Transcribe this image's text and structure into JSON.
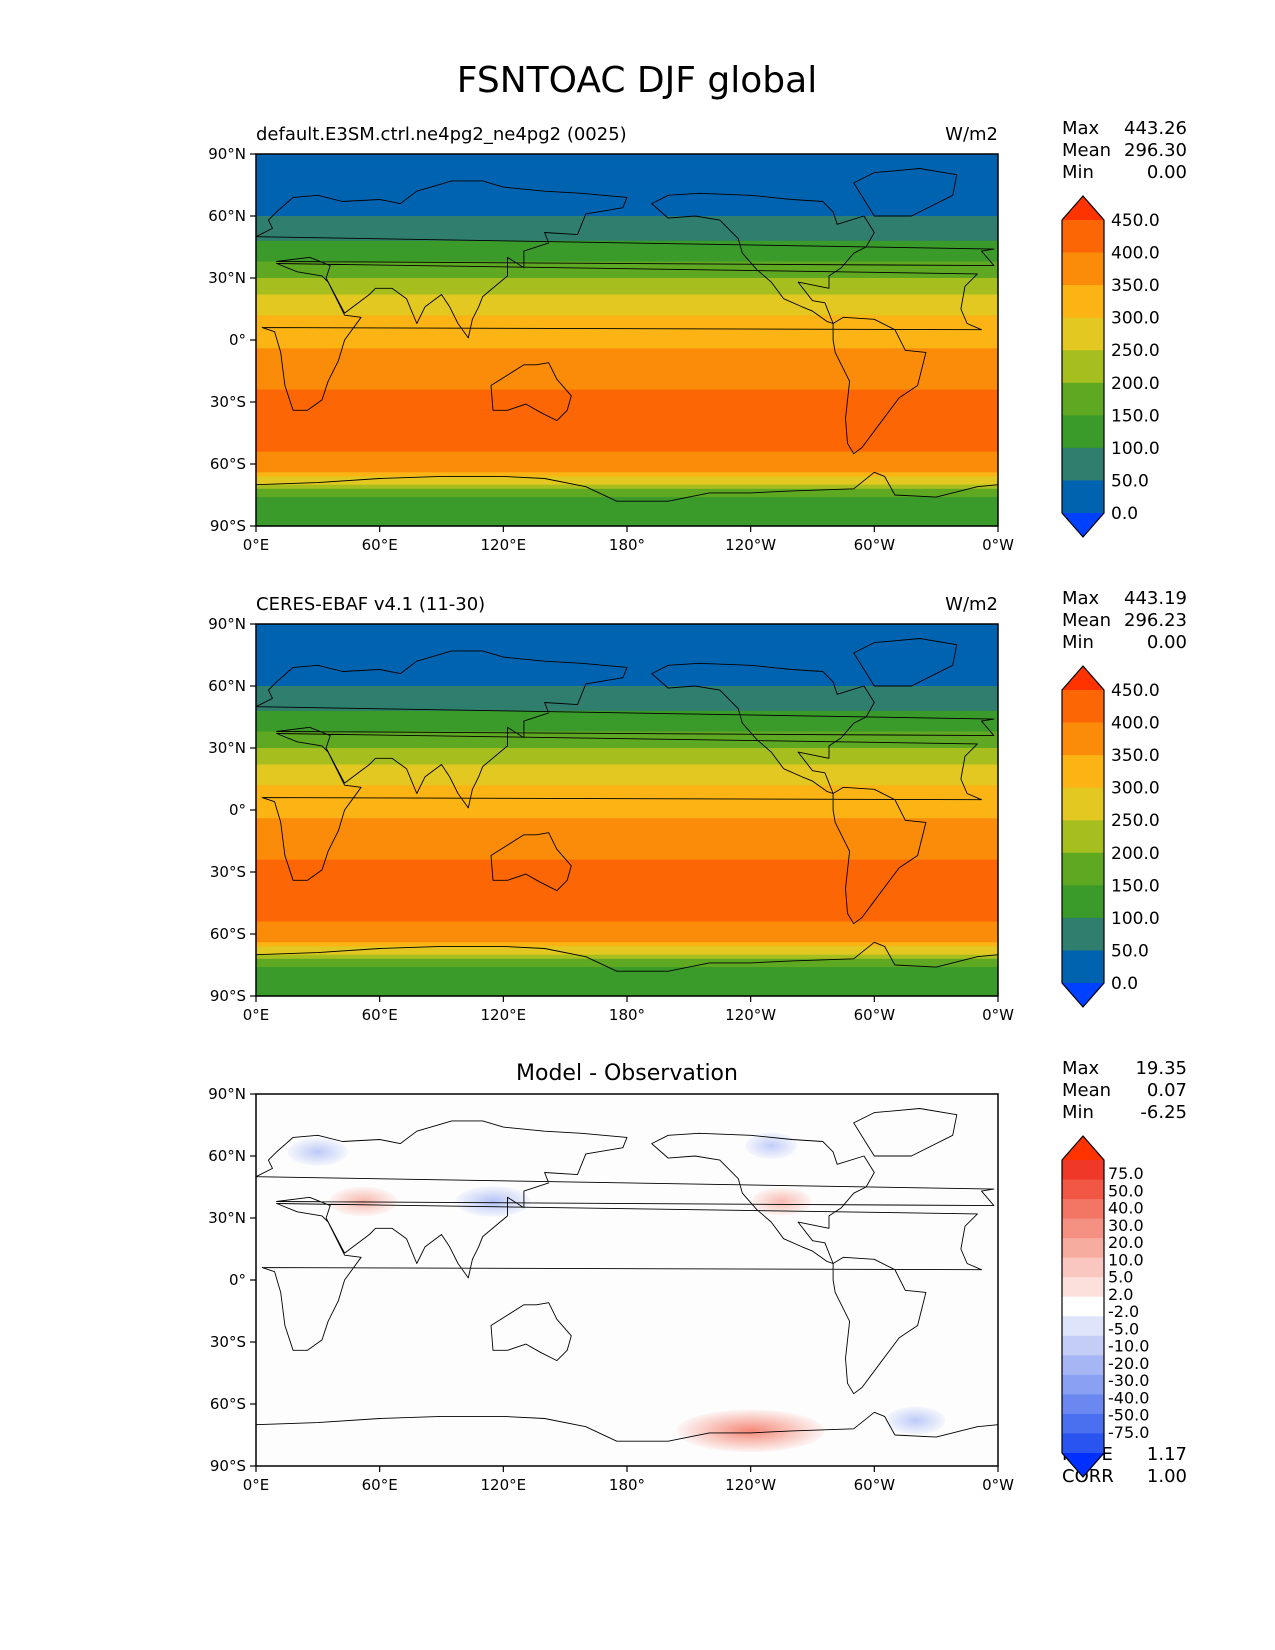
{
  "figure": {
    "title": "FSNTOAC DJF global"
  },
  "axes": {
    "x_ticks": [
      "0°E",
      "60°E",
      "120°E",
      "180°",
      "120°W",
      "60°W",
      "0°W"
    ],
    "y_ticks": [
      "90°N",
      "60°N",
      "30°N",
      "0°",
      "30°S",
      "60°S",
      "90°S"
    ],
    "xlim": [
      0,
      360
    ],
    "ylim": [
      -90,
      90
    ]
  },
  "colormaps": {
    "sequential": [
      "#0040ff",
      "#0063b0",
      "#2f7e6e",
      "#3a9a2a",
      "#5fa822",
      "#a7bf1e",
      "#e2c820",
      "#fbb414",
      "#fb8c0a",
      "#fc6605",
      "#ff3300"
    ],
    "diverging": [
      "#0030ff",
      "#2a54f0",
      "#4a70f0",
      "#6a88f0",
      "#8aa0f2",
      "#a6b6f4",
      "#c4cdf6",
      "#dee4fa",
      "#ffffff",
      "#fbe0dc",
      "#f9c7bf",
      "#f7aca0",
      "#f59182",
      "#f37564",
      "#f25746",
      "#f03828",
      "#ff3300"
    ]
  },
  "chart_data": [
    {
      "type": "heatmap",
      "panel_id": "model",
      "title_left": "default.E3SM.ctrl.ne4pg2_ne4pg2 (0025)",
      "title_right": "W/m2",
      "stats": {
        "max_label": "Max",
        "max": "443.26",
        "mean_label": "Mean",
        "mean": "296.30",
        "min_label": "Min",
        "min": "0.00"
      },
      "colorbar_ticks": [
        "450.0",
        "400.0",
        "350.0",
        "300.0",
        "250.0",
        "200.0",
        "150.0",
        "100.0",
        "50.0",
        "0.0"
      ],
      "levels": [
        0,
        50,
        100,
        150,
        200,
        250,
        300,
        350,
        400,
        450
      ],
      "lat_profile": {
        "lat": [
          90,
          84,
          75,
          60,
          50,
          40,
          30,
          20,
          10,
          0,
          -10,
          -20,
          -30,
          -40,
          -50,
          -60,
          -65,
          -70,
          -75,
          -80,
          -90
        ],
        "value": [
          0,
          30,
          40,
          50,
          90,
          140,
          200,
          260,
          310,
          340,
          370,
          395,
          410,
          420,
          415,
          380,
          330,
          230,
          150,
          140,
          140
        ]
      }
    },
    {
      "type": "heatmap",
      "panel_id": "obs",
      "title_left": "CERES-EBAF v4.1 (11-30)",
      "title_right": "W/m2",
      "stats": {
        "max_label": "Max",
        "max": "443.19",
        "mean_label": "Mean",
        "mean": "296.23",
        "min_label": "Min",
        "min": "0.00"
      },
      "colorbar_ticks": [
        "450.0",
        "400.0",
        "350.0",
        "300.0",
        "250.0",
        "200.0",
        "150.0",
        "100.0",
        "50.0",
        "0.0"
      ],
      "levels": [
        0,
        50,
        100,
        150,
        200,
        250,
        300,
        350,
        400,
        450
      ],
      "lat_profile": {
        "lat": [
          90,
          84,
          75,
          60,
          50,
          40,
          30,
          20,
          10,
          0,
          -10,
          -20,
          -30,
          -40,
          -50,
          -60,
          -65,
          -70,
          -75,
          -80,
          -90
        ],
        "value": [
          0,
          30,
          40,
          50,
          90,
          140,
          200,
          260,
          310,
          340,
          370,
          395,
          410,
          420,
          415,
          380,
          330,
          230,
          150,
          140,
          140
        ]
      }
    },
    {
      "type": "heatmap",
      "panel_id": "diff",
      "title_center": "Model - Observation",
      "stats": {
        "max_label": "Max",
        "max": "19.35",
        "mean_label": "Mean",
        "mean": "0.07",
        "min_label": "Min",
        "min": "-6.25"
      },
      "colorbar_ticks": [
        "75.0",
        "50.0",
        "40.0",
        "30.0",
        "20.0",
        "10.0",
        "5.0",
        "2.0",
        "-2.0",
        "-5.0",
        "-10.0",
        "-20.0",
        "-30.0",
        "-40.0",
        "-50.0",
        "-75.0"
      ],
      "levels": [
        -75,
        -50,
        -40,
        -30,
        -20,
        -10,
        -5,
        -2,
        2,
        5,
        10,
        20,
        30,
        40,
        50,
        75
      ],
      "anomalies": [
        {
          "lon": 30,
          "lat": 62,
          "value": -3
        },
        {
          "lon": 52,
          "lat": 38,
          "value": 4
        },
        {
          "lon": 115,
          "lat": 38,
          "value": -5
        },
        {
          "lon": 250,
          "lat": 65,
          "value": -2
        },
        {
          "lon": 255,
          "lat": 38,
          "value": 3
        },
        {
          "lon": 240,
          "lat": -73,
          "value": 14
        },
        {
          "lon": 320,
          "lat": -68,
          "value": -3
        }
      ],
      "rmse_label": "RMSE",
      "rmse": "1.17",
      "corr_label": "CORR",
      "corr": "1.00"
    }
  ]
}
